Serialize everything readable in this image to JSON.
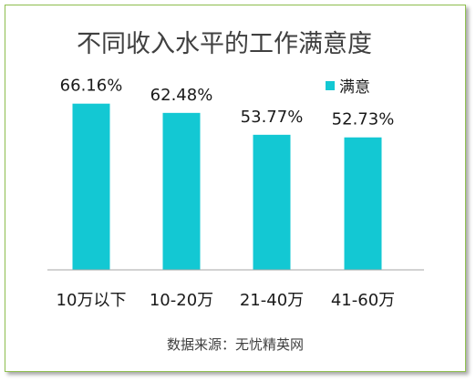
{
  "chart_data": {
    "type": "bar",
    "title": "不同收入水平的工作满意度",
    "categories": [
      "10万以下",
      "10-20万",
      "21-40万",
      "41-60万"
    ],
    "series": [
      {
        "name": "满意",
        "values": [
          66.16,
          62.48,
          53.77,
          52.73
        ],
        "labels": [
          "66.16%",
          "62.48%",
          "53.77%",
          "52.73%"
        ]
      }
    ],
    "ylim": [
      0,
      90
    ],
    "grid": false,
    "legend": "top-right",
    "bar_color": "#13c8d3",
    "source": "数据来源：无忧精英网"
  }
}
